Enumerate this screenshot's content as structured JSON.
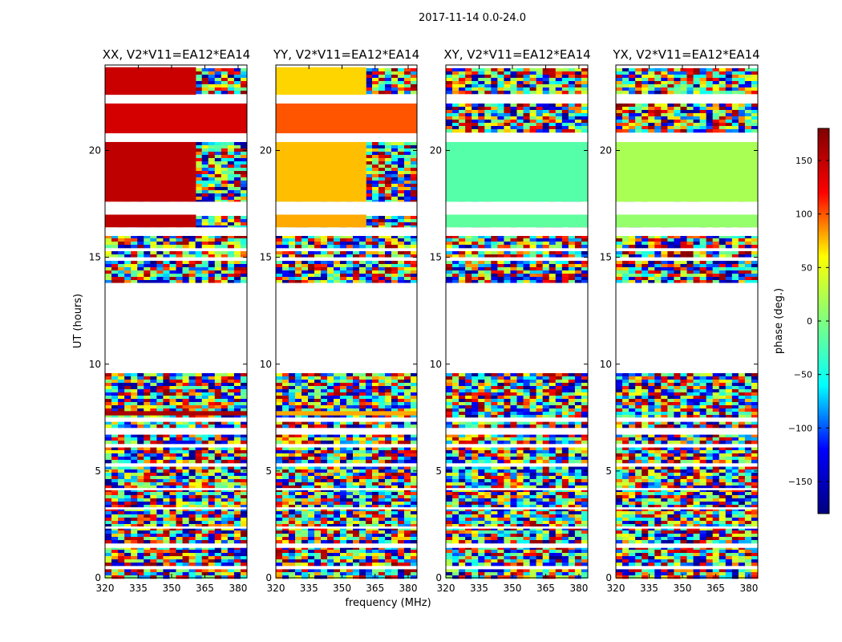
{
  "figure": {
    "suptitle": "2017-11-14 0.0-24.0",
    "xlabel": "frequency (MHz)",
    "ylabel": "UT (hours)",
    "colorbar_label": "phase (deg.)",
    "colorbar_ticks": [
      150,
      100,
      50,
      0,
      -50,
      -100,
      -150
    ],
    "colorbar_tick_labels": [
      "150",
      "100",
      "50",
      "0",
      "−50",
      "−100",
      "−150"
    ],
    "colorbar_range": [
      -180,
      180
    ],
    "colormap": "jet",
    "colormap_stops": [
      "#00007f",
      "#0000ff",
      "#00ffff",
      "#7fff7f",
      "#ffff00",
      "#ff0000",
      "#7f0000"
    ]
  },
  "chart_data": [
    {
      "type": "heatmap",
      "title": "XX, V2*V11=EA12*EA14",
      "xlabel": "",
      "ylabel": "UT (hours)",
      "x_ticks": [
        320,
        335,
        350,
        365,
        380
      ],
      "x_tick_labels": [
        "320",
        "335",
        "350",
        "365",
        "380"
      ],
      "y_ticks": [
        0,
        5,
        10,
        15,
        20
      ],
      "y_tick_labels": [
        "0",
        "5",
        "10",
        "15",
        "20"
      ],
      "xlim": [
        320,
        384
      ],
      "ylim": [
        0,
        24
      ],
      "coherent_phase_blocks": [
        {
          "t_start": 17.6,
          "t_end": 20.4,
          "f_start": 320,
          "f_end": 361,
          "phase": 150
        },
        {
          "t_start": 16.4,
          "t_end": 17.0,
          "f_start": 320,
          "f_end": 361,
          "phase": 150
        },
        {
          "t_start": 22.6,
          "t_end": 23.9,
          "f_start": 320,
          "f_end": 361,
          "phase": 145
        },
        {
          "t_start": 20.8,
          "t_end": 22.2,
          "f_start": 320,
          "f_end": 384,
          "phase": 140
        },
        {
          "t_start": 7.6,
          "t_end": 7.8,
          "f_start": 320,
          "f_end": 384,
          "phase": 160
        }
      ]
    },
    {
      "type": "heatmap",
      "title": "YY, V2*V11=EA12*EA14",
      "xlabel": "frequency (MHz)",
      "ylabel": "",
      "x_ticks": [
        320,
        335,
        350,
        365,
        380
      ],
      "x_tick_labels": [
        "320",
        "335",
        "350",
        "365",
        "380"
      ],
      "y_ticks": [
        0,
        5,
        10,
        15,
        20
      ],
      "y_tick_labels": [
        "0",
        "5",
        "10",
        "15",
        "20"
      ],
      "xlim": [
        320,
        384
      ],
      "ylim": [
        0,
        24
      ],
      "coherent_phase_blocks": [
        {
          "t_start": 17.6,
          "t_end": 20.4,
          "f_start": 320,
          "f_end": 361,
          "phase": 75
        },
        {
          "t_start": 16.4,
          "t_end": 17.0,
          "f_start": 320,
          "f_end": 361,
          "phase": 80
        },
        {
          "t_start": 22.6,
          "t_end": 23.9,
          "f_start": 320,
          "f_end": 361,
          "phase": 70
        },
        {
          "t_start": 20.8,
          "t_end": 22.2,
          "f_start": 320,
          "f_end": 384,
          "phase": 100
        },
        {
          "t_start": 7.6,
          "t_end": 7.8,
          "f_start": 320,
          "f_end": 384,
          "phase": 80
        }
      ]
    },
    {
      "type": "heatmap",
      "title": "XY, V2*V11=EA12*EA14",
      "xlabel": "",
      "ylabel": "",
      "x_ticks": [
        320,
        335,
        350,
        365,
        380
      ],
      "x_tick_labels": [
        "320",
        "335",
        "350",
        "365",
        "380"
      ],
      "y_ticks": [
        0,
        5,
        10,
        15,
        20
      ],
      "y_tick_labels": [
        "0",
        "5",
        "10",
        "15",
        "20"
      ],
      "xlim": [
        320,
        384
      ],
      "ylim": [
        0,
        24
      ],
      "coherent_phase_blocks": [
        {
          "t_start": 17.6,
          "t_end": 20.4,
          "f_start": 320,
          "f_end": 384,
          "phase": -20
        },
        {
          "t_start": 16.4,
          "t_end": 17.0,
          "f_start": 320,
          "f_end": 384,
          "phase": -15
        }
      ]
    },
    {
      "type": "heatmap",
      "title": "YX, V2*V11=EA12*EA14",
      "xlabel": "",
      "ylabel": "",
      "x_ticks": [
        320,
        335,
        350,
        365,
        380
      ],
      "x_tick_labels": [
        "320",
        "335",
        "350",
        "365",
        "380"
      ],
      "y_ticks": [
        0,
        5,
        10,
        15,
        20
      ],
      "y_tick_labels": [
        "0",
        "5",
        "10",
        "15",
        "20"
      ],
      "xlim": [
        320,
        384
      ],
      "ylim": [
        0,
        24
      ],
      "coherent_phase_blocks": [
        {
          "t_start": 17.6,
          "t_end": 20.4,
          "f_start": 320,
          "f_end": 384,
          "phase": 20
        },
        {
          "t_start": 16.4,
          "t_end": 17.0,
          "f_start": 320,
          "f_end": 384,
          "phase": 10
        }
      ]
    }
  ],
  "data_gaps_hours": [
    [
      0.4,
      0.5
    ],
    [
      1.4,
      1.6
    ],
    [
      2.3,
      2.4
    ],
    [
      3.2,
      3.3
    ],
    [
      4.1,
      4.2
    ],
    [
      5.2,
      5.3
    ],
    [
      6.1,
      6.2
    ],
    [
      6.7,
      7.0
    ],
    [
      7.3,
      7.5
    ],
    [
      9.6,
      13.8
    ],
    [
      14.9,
      15.0
    ],
    [
      15.35,
      15.4
    ],
    [
      16.0,
      16.4
    ],
    [
      17.0,
      17.6
    ],
    [
      20.4,
      20.8
    ],
    [
      22.2,
      22.6
    ],
    [
      23.9,
      24.0
    ]
  ]
}
